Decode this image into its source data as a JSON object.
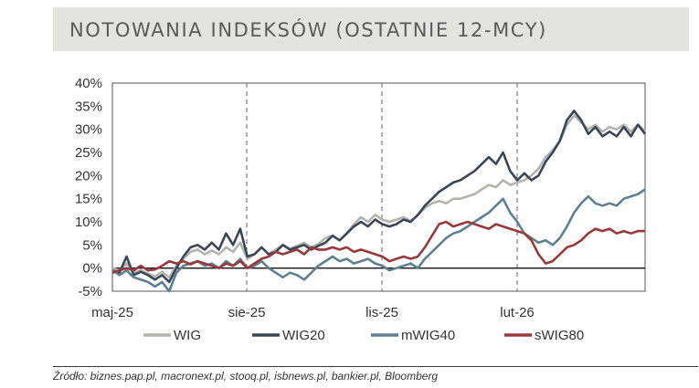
{
  "header": {
    "title": "NOTOWANIA INDEKSÓW (OSTATNIE 12-MCY)"
  },
  "source": "Źródło: biznes.pap.pl, macronext.pl, stooq.pl, isbnews.pl, bankier.pl, Bloomberg",
  "chart_data": {
    "type": "line",
    "title": "NOTOWANIA INDEKSÓW (OSTATNIE 12-MCY)",
    "xlabel": "",
    "ylabel": "",
    "x_range": [
      0,
      13.5
    ],
    "ylim": [
      -5,
      40
    ],
    "y_ticks": [
      40,
      35,
      30,
      25,
      20,
      15,
      10,
      5,
      0,
      -5
    ],
    "y_tick_labels": [
      "40%",
      "35%",
      "30%",
      "25%",
      "20%",
      "15%",
      "10%",
      "5%",
      "0%",
      "-5%"
    ],
    "x_ticks": [
      0.2,
      3.6,
      7.0,
      10.4
    ],
    "x_tick_labels": [
      "maj-25",
      "sie-25",
      "lis-25",
      "lut-26"
    ],
    "grid": {
      "vertical_dashed": true,
      "zero_line": true
    },
    "legend": {
      "position": "bottom",
      "entries": [
        "WIG",
        "WIG20",
        "mWIG40",
        "sWIG80"
      ]
    },
    "series": [
      {
        "name": "WIG",
        "color": "#b2b4ad",
        "points": [
          [
            0.0,
            0.0
          ],
          [
            0.2,
            -0.5
          ],
          [
            0.4,
            1.0
          ],
          [
            0.6,
            -1.0
          ],
          [
            0.8,
            -0.5
          ],
          [
            1.0,
            -1.2
          ],
          [
            1.2,
            -1.8
          ],
          [
            1.4,
            -0.8
          ],
          [
            1.6,
            -2.0
          ],
          [
            1.8,
            0.5
          ],
          [
            2.0,
            2.0
          ],
          [
            2.2,
            3.5
          ],
          [
            2.4,
            4.0
          ],
          [
            2.6,
            3.0
          ],
          [
            2.8,
            3.8
          ],
          [
            3.0,
            3.0
          ],
          [
            3.2,
            4.5
          ],
          [
            3.4,
            3.5
          ],
          [
            3.6,
            5.5
          ],
          [
            3.8,
            2.0
          ],
          [
            4.0,
            3.0
          ],
          [
            4.2,
            4.5
          ],
          [
            4.4,
            3.0
          ],
          [
            4.6,
            4.0
          ],
          [
            4.8,
            5.0
          ],
          [
            5.0,
            4.2
          ],
          [
            5.2,
            4.8
          ],
          [
            5.4,
            5.5
          ],
          [
            5.6,
            4.5
          ],
          [
            5.8,
            5.2
          ],
          [
            6.0,
            6.5
          ],
          [
            6.2,
            7.0
          ],
          [
            6.4,
            6.0
          ],
          [
            6.6,
            7.5
          ],
          [
            6.8,
            9.5
          ],
          [
            7.0,
            11.0
          ],
          [
            7.2,
            10.0
          ],
          [
            7.4,
            11.5
          ],
          [
            7.6,
            10.5
          ],
          [
            7.8,
            10.0
          ],
          [
            8.0,
            10.5
          ],
          [
            8.2,
            11.0
          ],
          [
            8.4,
            10.2
          ],
          [
            8.6,
            11.5
          ],
          [
            8.8,
            13.0
          ],
          [
            9.0,
            14.0
          ],
          [
            9.2,
            14.5
          ],
          [
            9.4,
            14.0
          ],
          [
            9.6,
            15.0
          ],
          [
            9.8,
            15.0
          ],
          [
            10.0,
            15.5
          ],
          [
            10.2,
            16.0
          ],
          [
            10.4,
            17.0
          ],
          [
            10.6,
            18.0
          ],
          [
            10.8,
            17.5
          ],
          [
            11.0,
            19.0
          ],
          [
            11.2,
            18.0
          ],
          [
            11.4,
            18.5
          ],
          [
            11.6,
            19.0
          ],
          [
            11.8,
            20.0
          ],
          [
            12.0,
            21.5
          ],
          [
            12.2,
            24.0
          ],
          [
            12.4,
            25.5
          ],
          [
            12.6,
            27.5
          ],
          [
            12.8,
            31.0
          ],
          [
            13.0,
            33.0
          ],
          [
            13.2,
            31.5
          ],
          [
            13.4,
            30.0
          ],
          [
            13.6,
            31.0
          ],
          [
            13.8,
            29.5
          ],
          [
            14.0,
            30.5
          ],
          [
            14.2,
            30.0
          ],
          [
            14.4,
            31.0
          ],
          [
            14.6,
            29.5
          ],
          [
            14.8,
            31.0
          ],
          [
            15.0,
            29.5
          ]
        ]
      },
      {
        "name": "WIG20",
        "color": "#3b4658",
        "points": [
          [
            0.0,
            -0.5
          ],
          [
            0.2,
            -1.0
          ],
          [
            0.4,
            2.5
          ],
          [
            0.6,
            -1.5
          ],
          [
            0.8,
            -0.8
          ],
          [
            1.0,
            -1.5
          ],
          [
            1.2,
            -2.5
          ],
          [
            1.4,
            -1.5
          ],
          [
            1.6,
            -3.0
          ],
          [
            1.8,
            0.0
          ],
          [
            2.0,
            2.5
          ],
          [
            2.2,
            4.5
          ],
          [
            2.4,
            5.0
          ],
          [
            2.6,
            4.0
          ],
          [
            2.8,
            5.5
          ],
          [
            3.0,
            4.0
          ],
          [
            3.2,
            7.5
          ],
          [
            3.4,
            5.0
          ],
          [
            3.6,
            8.5
          ],
          [
            3.8,
            2.5
          ],
          [
            4.0,
            3.0
          ],
          [
            4.2,
            4.5
          ],
          [
            4.4,
            3.0
          ],
          [
            4.6,
            3.5
          ],
          [
            4.8,
            5.0
          ],
          [
            5.0,
            4.0
          ],
          [
            5.2,
            4.5
          ],
          [
            5.4,
            5.0
          ],
          [
            5.6,
            4.0
          ],
          [
            5.8,
            4.8
          ],
          [
            6.0,
            5.5
          ],
          [
            6.2,
            7.0
          ],
          [
            6.4,
            6.0
          ],
          [
            6.6,
            7.5
          ],
          [
            6.8,
            9.0
          ],
          [
            7.0,
            10.0
          ],
          [
            7.2,
            9.0
          ],
          [
            7.4,
            10.5
          ],
          [
            7.6,
            9.5
          ],
          [
            7.8,
            9.0
          ],
          [
            8.0,
            9.5
          ],
          [
            8.2,
            10.5
          ],
          [
            8.4,
            10.0
          ],
          [
            8.6,
            11.5
          ],
          [
            8.8,
            13.5
          ],
          [
            9.0,
            15.0
          ],
          [
            9.2,
            16.5
          ],
          [
            9.4,
            17.5
          ],
          [
            9.6,
            18.5
          ],
          [
            9.8,
            19.0
          ],
          [
            10.0,
            20.0
          ],
          [
            10.2,
            21.0
          ],
          [
            10.4,
            22.5
          ],
          [
            10.6,
            24.0
          ],
          [
            10.8,
            22.5
          ],
          [
            11.0,
            25.0
          ],
          [
            11.2,
            21.0
          ],
          [
            11.4,
            19.0
          ],
          [
            11.6,
            20.5
          ],
          [
            11.8,
            19.0
          ],
          [
            12.0,
            20.0
          ],
          [
            12.2,
            23.0
          ],
          [
            12.4,
            25.0
          ],
          [
            12.6,
            27.5
          ],
          [
            12.8,
            32.0
          ],
          [
            13.0,
            34.0
          ],
          [
            13.2,
            32.0
          ],
          [
            13.4,
            29.0
          ],
          [
            13.6,
            30.5
          ],
          [
            13.8,
            28.5
          ],
          [
            14.0,
            29.5
          ],
          [
            14.2,
            28.5
          ],
          [
            14.4,
            30.5
          ],
          [
            14.6,
            28.5
          ],
          [
            14.8,
            31.0
          ],
          [
            15.0,
            29.0
          ]
        ]
      },
      {
        "name": "mWIG40",
        "color": "#5d8191",
        "points": [
          [
            0.0,
            -0.5
          ],
          [
            0.2,
            -1.5
          ],
          [
            0.4,
            -0.5
          ],
          [
            0.6,
            -2.0
          ],
          [
            0.8,
            -2.5
          ],
          [
            1.0,
            -3.0
          ],
          [
            1.2,
            -4.0
          ],
          [
            1.4,
            -3.0
          ],
          [
            1.6,
            -5.0
          ],
          [
            1.8,
            -1.0
          ],
          [
            2.0,
            0.5
          ],
          [
            2.2,
            1.0
          ],
          [
            2.4,
            1.5
          ],
          [
            2.6,
            0.5
          ],
          [
            2.8,
            1.0
          ],
          [
            3.0,
            0.0
          ],
          [
            3.2,
            1.5
          ],
          [
            3.4,
            0.5
          ],
          [
            3.6,
            2.0
          ],
          [
            3.8,
            0.0
          ],
          [
            4.0,
            0.5
          ],
          [
            4.2,
            1.5
          ],
          [
            4.4,
            0.0
          ],
          [
            4.6,
            -1.0
          ],
          [
            4.8,
            -2.0
          ],
          [
            5.0,
            -1.0
          ],
          [
            5.2,
            -1.5
          ],
          [
            5.4,
            -2.5
          ],
          [
            5.6,
            -1.0
          ],
          [
            5.8,
            0.5
          ],
          [
            6.0,
            1.5
          ],
          [
            6.2,
            2.5
          ],
          [
            6.4,
            1.5
          ],
          [
            6.6,
            2.0
          ],
          [
            6.8,
            1.0
          ],
          [
            7.0,
            1.5
          ],
          [
            7.2,
            2.0
          ],
          [
            7.4,
            1.0
          ],
          [
            7.6,
            0.5
          ],
          [
            7.8,
            -0.5
          ],
          [
            8.0,
            0.0
          ],
          [
            8.2,
            0.5
          ],
          [
            8.4,
            1.0
          ],
          [
            8.6,
            0.0
          ],
          [
            8.8,
            2.0
          ],
          [
            9.0,
            3.5
          ],
          [
            9.2,
            5.0
          ],
          [
            9.4,
            6.5
          ],
          [
            9.6,
            7.5
          ],
          [
            9.8,
            8.0
          ],
          [
            10.0,
            9.0
          ],
          [
            10.2,
            10.0
          ],
          [
            10.4,
            11.0
          ],
          [
            10.6,
            12.0
          ],
          [
            10.8,
            13.5
          ],
          [
            11.0,
            15.0
          ],
          [
            11.2,
            12.0
          ],
          [
            11.4,
            10.0
          ],
          [
            11.6,
            7.5
          ],
          [
            11.8,
            6.5
          ],
          [
            12.0,
            5.5
          ],
          [
            12.2,
            6.0
          ],
          [
            12.4,
            5.0
          ],
          [
            12.6,
            6.5
          ],
          [
            12.8,
            9.0
          ],
          [
            13.0,
            12.0
          ],
          [
            13.2,
            14.0
          ],
          [
            13.4,
            15.5
          ],
          [
            13.6,
            14.0
          ],
          [
            13.8,
            13.5
          ],
          [
            14.0,
            14.0
          ],
          [
            14.2,
            13.5
          ],
          [
            14.4,
            15.0
          ],
          [
            14.6,
            15.5
          ],
          [
            14.8,
            16.0
          ],
          [
            15.0,
            17.0
          ]
        ]
      },
      {
        "name": "sWIG80",
        "color": "#983a39",
        "points": [
          [
            0.0,
            -1.0
          ],
          [
            0.2,
            -0.5
          ],
          [
            0.4,
            0.0
          ],
          [
            0.6,
            -0.5
          ],
          [
            0.8,
            0.5
          ],
          [
            1.0,
            -0.5
          ],
          [
            1.2,
            -0.3
          ],
          [
            1.4,
            0.5
          ],
          [
            1.6,
            1.5
          ],
          [
            1.8,
            1.0
          ],
          [
            2.0,
            1.5
          ],
          [
            2.2,
            0.8
          ],
          [
            2.4,
            1.5
          ],
          [
            2.6,
            1.0
          ],
          [
            2.8,
            0.5
          ],
          [
            3.0,
            0.0
          ],
          [
            3.2,
            1.0
          ],
          [
            3.4,
            0.5
          ],
          [
            3.6,
            1.5
          ],
          [
            3.8,
            0.0
          ],
          [
            4.0,
            1.0
          ],
          [
            4.2,
            2.0
          ],
          [
            4.4,
            2.5
          ],
          [
            4.6,
            3.5
          ],
          [
            4.8,
            3.0
          ],
          [
            5.0,
            3.5
          ],
          [
            5.2,
            4.0
          ],
          [
            5.4,
            3.0
          ],
          [
            5.6,
            4.5
          ],
          [
            5.8,
            4.0
          ],
          [
            6.0,
            4.0
          ],
          [
            6.2,
            4.5
          ],
          [
            6.4,
            4.0
          ],
          [
            6.6,
            4.5
          ],
          [
            6.8,
            3.5
          ],
          [
            7.0,
            4.0
          ],
          [
            7.2,
            3.5
          ],
          [
            7.4,
            3.0
          ],
          [
            7.6,
            2.5
          ],
          [
            7.8,
            1.5
          ],
          [
            8.0,
            2.0
          ],
          [
            8.2,
            2.5
          ],
          [
            8.4,
            2.0
          ],
          [
            8.6,
            2.5
          ],
          [
            8.8,
            4.5
          ],
          [
            9.0,
            7.0
          ],
          [
            9.2,
            9.5
          ],
          [
            9.4,
            10.0
          ],
          [
            9.6,
            9.0
          ],
          [
            9.8,
            9.5
          ],
          [
            10.0,
            10.0
          ],
          [
            10.2,
            9.5
          ],
          [
            10.4,
            9.0
          ],
          [
            10.6,
            8.5
          ],
          [
            10.8,
            9.5
          ],
          [
            11.0,
            9.0
          ],
          [
            11.2,
            8.5
          ],
          [
            11.4,
            8.0
          ],
          [
            11.6,
            7.5
          ],
          [
            11.8,
            6.0
          ],
          [
            12.0,
            3.0
          ],
          [
            12.2,
            1.0
          ],
          [
            12.4,
            1.5
          ],
          [
            12.6,
            3.0
          ],
          [
            12.8,
            4.5
          ],
          [
            13.0,
            5.0
          ],
          [
            13.2,
            6.0
          ],
          [
            13.4,
            7.5
          ],
          [
            13.6,
            8.5
          ],
          [
            13.8,
            8.0
          ],
          [
            14.0,
            8.5
          ],
          [
            14.2,
            7.5
          ],
          [
            14.4,
            8.0
          ],
          [
            14.6,
            7.5
          ],
          [
            14.8,
            8.0
          ],
          [
            15.0,
            8.0
          ]
        ]
      }
    ]
  }
}
